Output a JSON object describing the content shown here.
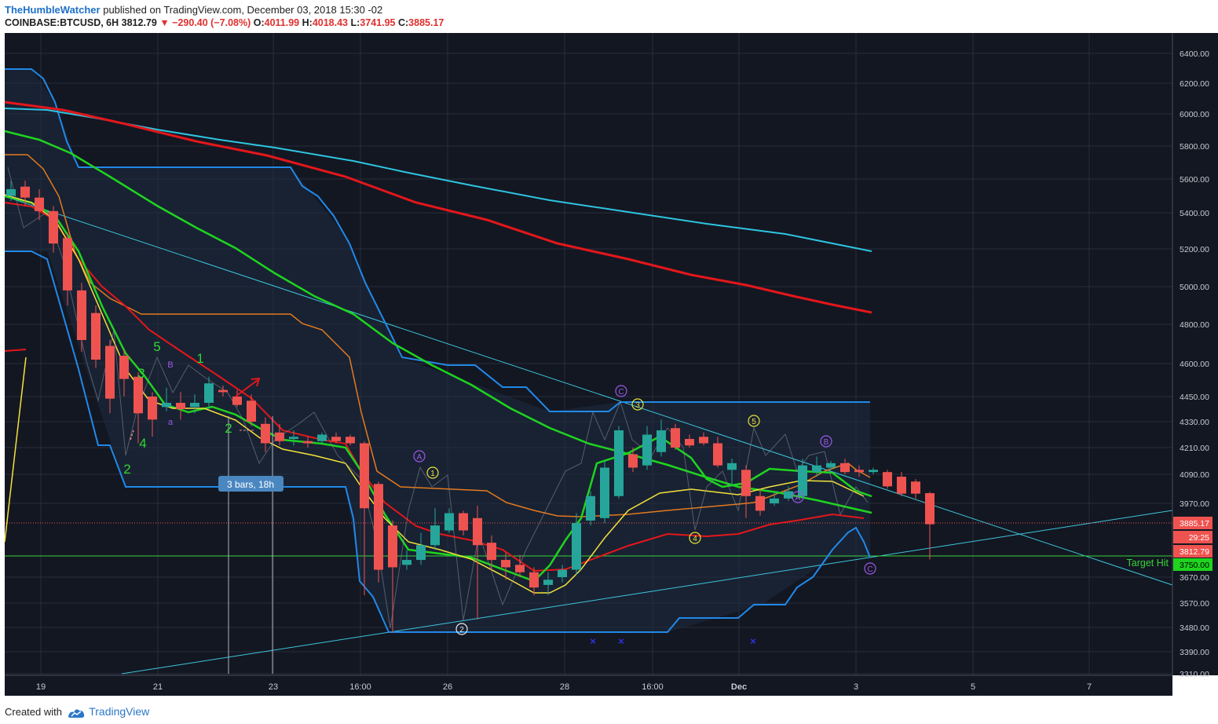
{
  "header": {
    "author": "TheHumbleWatcher",
    "published": "published on TradingView.com, December 03, 2018 15:30 -02",
    "symbol": "COINBASE:BTCUSD, 6H",
    "last": "3812.79",
    "change": "−290.40 (−7.08%)",
    "o_label": "O:",
    "o": "4011.99",
    "h_label": "H:",
    "h": "4018.43",
    "l_label": "L:",
    "l": "3741.95",
    "c_label": "C:",
    "c": "3885.17"
  },
  "footer": {
    "created_with": "Created with",
    "brand": "TradingView"
  },
  "colors": {
    "background": "#131722",
    "grid": "#2a2e39",
    "up": "#26a69a",
    "down": "#ef5350",
    "ema_red": "#e3171b",
    "ema_cyan": "#2ec4e0",
    "ema_green": "#1fd41f",
    "ema_yellow": "#f5e23a",
    "band_orange": "#e37a1f",
    "band_blue": "#2189e8",
    "trend": "#3cc6dc",
    "target": "#39d239",
    "wave_yellow": "#e8e23c",
    "wave_purple": "#9b59e6"
  },
  "chart_data": {
    "type": "candlestick",
    "y_axis": {
      "range": [
        3310,
        6500
      ],
      "ticks": [
        "6400.00",
        "6200.00",
        "6000.00",
        "5800.00",
        "5600.00",
        "5400.00",
        "5200.00",
        "5000.00",
        "4800.00",
        "4600.00",
        "4450.00",
        "4330.00",
        "4210.00",
        "4090.00",
        "3970.00",
        "3670.00",
        "3570.00",
        "3480.00",
        "3390.00",
        "3310.00"
      ]
    },
    "x_axis": {
      "ticks": [
        "19",
        "21",
        "23",
        "16:00",
        "26",
        "28",
        "16:00",
        "Dec",
        "3",
        "5",
        "7"
      ]
    },
    "price_labels": [
      {
        "text": "3885.17",
        "value": 3885.17
      },
      {
        "text": "29:25",
        "value": 3845
      },
      {
        "text": "3812.79",
        "value": 3812.79
      },
      {
        "text": "3750.00",
        "value": 3750
      }
    ],
    "target_line": {
      "label": "Target Hit",
      "value": 3750
    },
    "measure_label": "3 bars, 18h",
    "candles": [
      [
        5500,
        5540,
        5470,
        5590
      ],
      [
        5555,
        5490,
        5440,
        5590
      ],
      [
        5490,
        5410,
        5360,
        5540
      ],
      [
        5410,
        5230,
        5180,
        5440
      ],
      [
        5260,
        4980,
        4900,
        5290
      ],
      [
        4980,
        4720,
        4660,
        5020
      ],
      [
        4860,
        4620,
        4580,
        4900
      ],
      [
        4690,
        4440,
        4370,
        4720
      ],
      [
        4640,
        4530,
        4450,
        4670
      ],
      [
        4540,
        4370,
        4230,
        4560
      ],
      [
        4450,
        4340,
        4260,
        4470
      ],
      [
        4400,
        4420,
        4380,
        4490
      ],
      [
        4420,
        4390,
        4340,
        4470
      ],
      [
        4400,
        4420,
        4370,
        4460
      ],
      [
        4420,
        4510,
        4390,
        4540
      ],
      [
        4480,
        4470,
        4450,
        4500
      ],
      [
        4450,
        4410,
        4400,
        4480
      ],
      [
        4430,
        4330,
        4310,
        4460
      ],
      [
        4320,
        4230,
        4190,
        4350
      ],
      [
        4280,
        4240,
        4220,
        4320
      ],
      [
        4250,
        4260,
        4220,
        4290
      ],
      [
        4240,
        4230,
        4210,
        4260
      ],
      [
        4240,
        4270,
        4230,
        4280
      ],
      [
        4260,
        4240,
        4230,
        4280
      ],
      [
        4260,
        4230,
        4220,
        4270
      ],
      [
        4230,
        3950,
        3600,
        4240
      ],
      [
        4050,
        3700,
        3650,
        4060
      ],
      [
        3880,
        3710,
        3460,
        3900
      ],
      [
        3720,
        3740,
        3700,
        3780
      ],
      [
        3740,
        3800,
        3720,
        3850
      ],
      [
        3800,
        3880,
        3780,
        3950
      ],
      [
        3860,
        3930,
        3850,
        3950
      ],
      [
        3930,
        3860,
        3840,
        3940
      ],
      [
        3910,
        3800,
        3510,
        3960
      ],
      [
        3810,
        3740,
        3700,
        3840
      ],
      [
        3740,
        3710,
        3660,
        3770
      ],
      [
        3720,
        3690,
        3670,
        3760
      ],
      [
        3690,
        3630,
        3600,
        3710
      ],
      [
        3640,
        3660,
        3600,
        3690
      ],
      [
        3670,
        3700,
        3650,
        3720
      ],
      [
        3700,
        3890,
        3680,
        3930
      ],
      [
        3900,
        4000,
        3880,
        4020
      ],
      [
        3910,
        4120,
        3890,
        4150
      ],
      [
        4000,
        4290,
        3990,
        4310
      ],
      [
        4180,
        4120,
        4100,
        4210
      ],
      [
        4130,
        4270,
        4110,
        4310
      ],
      [
        4190,
        4290,
        4170,
        4340
      ],
      [
        4300,
        4210,
        4200,
        4320
      ],
      [
        4250,
        4220,
        4210,
        4270
      ],
      [
        4260,
        4230,
        4220,
        4280
      ],
      [
        4230,
        4130,
        4120,
        4260
      ],
      [
        4110,
        4140,
        4040,
        4160
      ],
      [
        4110,
        4000,
        3910,
        4130
      ],
      [
        4000,
        3940,
        3920,
        4030
      ],
      [
        3970,
        3990,
        3960,
        4020
      ],
      [
        3990,
        4020,
        3980,
        4040
      ],
      [
        4000,
        4130,
        3990,
        4160
      ],
      [
        4100,
        4130,
        4080,
        4170
      ],
      [
        4120,
        4140,
        4110,
        4150
      ],
      [
        4140,
        4100,
        4090,
        4160
      ],
      [
        4110,
        4100,
        4080,
        4130
      ],
      [
        4100,
        4110,
        4090,
        4120
      ],
      [
        4100,
        4040,
        4030,
        4110
      ],
      [
        4080,
        4010,
        4000,
        4100
      ],
      [
        4060,
        4010,
        3990,
        4070
      ],
      [
        4012,
        3885,
        3742,
        4018
      ]
    ]
  }
}
